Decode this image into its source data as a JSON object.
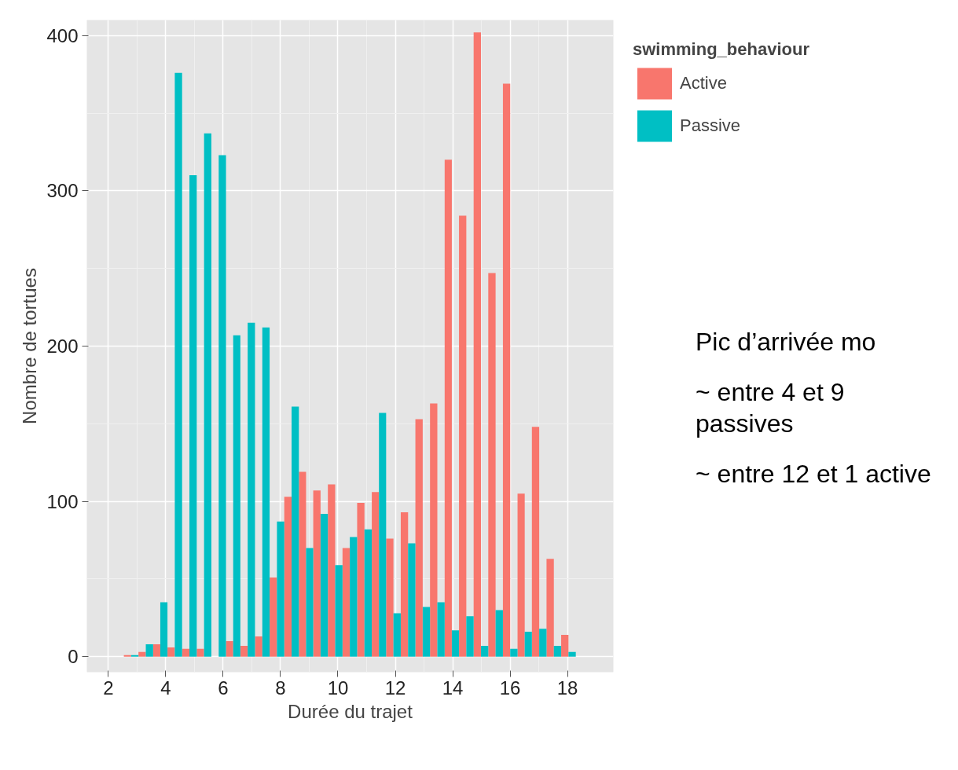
{
  "chart_data": {
    "type": "histogram",
    "xlabel": "Durée du trajet",
    "ylabel": "Nombre de tortues",
    "legend_title": "swimming_behaviour",
    "bins": [
      2.54,
      3.05,
      3.56,
      4.06,
      4.57,
      5.08,
      5.59,
      6.1,
      6.6,
      7.11,
      7.62,
      8.13,
      8.64,
      9.14,
      9.65,
      10.16,
      10.67,
      11.18,
      11.68,
      12.19,
      12.7,
      13.21,
      13.72,
      14.22,
      14.73,
      15.24,
      15.75,
      16.26,
      16.76,
      17.27,
      17.78,
      18.29
    ],
    "series": [
      {
        "name": "Active",
        "color": "#f8766d",
        "values": [
          1,
          3,
          8,
          6,
          5,
          5,
          0,
          10,
          7,
          13,
          51,
          103,
          119,
          107,
          111,
          70,
          99,
          106,
          76,
          93,
          153,
          163,
          320,
          284,
          402,
          247,
          369,
          105,
          148,
          63,
          14
        ]
      },
      {
        "name": "Passive",
        "color": "#00bfc4",
        "values": [
          1,
          8,
          35,
          376,
          310,
          337,
          323,
          207,
          215,
          212,
          87,
          161,
          70,
          92,
          59,
          77,
          82,
          157,
          28,
          73,
          32,
          35,
          17,
          26,
          7,
          30,
          5,
          16,
          18,
          7,
          3
        ]
      }
    ],
    "xlim": [
      1.25,
      19.6
    ],
    "ylim": [
      -10,
      410
    ],
    "xticks": [
      2,
      4,
      6,
      8,
      10,
      12,
      14,
      16,
      18
    ],
    "yticks": [
      0,
      100,
      200,
      300,
      400
    ],
    "grid": true,
    "legend": "top right",
    "annotations": [
      "Pic d’arrivée mo",
      "~ entre 4 et 9 passives",
      "~ entre 12 et 1 active"
    ]
  }
}
